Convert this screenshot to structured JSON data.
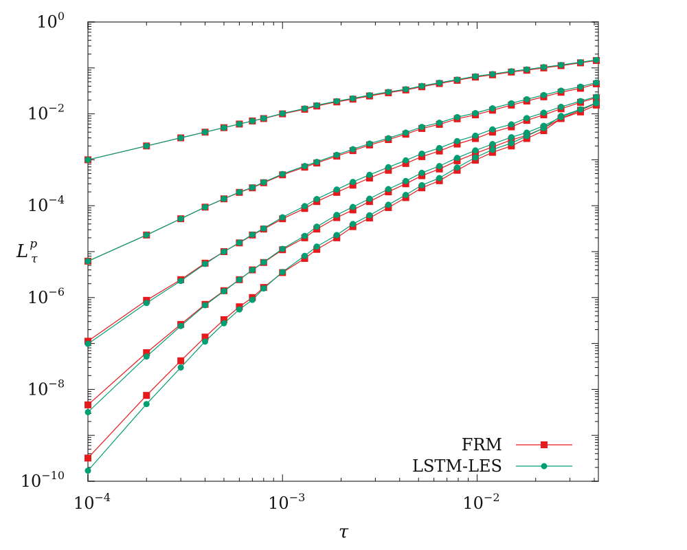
{
  "chart_data": {
    "type": "line",
    "xlabel": "τ",
    "ylabel": {
      "base": "L",
      "sup": "p",
      "sub": "τ"
    },
    "xscale": "log",
    "yscale": "log",
    "xlim": [
      0.0001,
      0.042
    ],
    "ylim": [
      1e-10,
      1
    ],
    "grid": false,
    "legend_position": "bottom-right",
    "x_ticks": [
      {
        "value": 0.0001,
        "base": "10",
        "exp": "−4"
      },
      {
        "value": 0.001,
        "base": "10",
        "exp": "−3"
      },
      {
        "value": 0.01,
        "base": "10",
        "exp": "−2"
      }
    ],
    "y_ticks": [
      {
        "value": 1,
        "base": "10",
        "exp": "0"
      },
      {
        "value": 0.01,
        "base": "10",
        "exp": "−2"
      },
      {
        "value": 0.0001,
        "base": "10",
        "exp": "−4"
      },
      {
        "value": 1e-06,
        "base": "10",
        "exp": "−6"
      },
      {
        "value": 1e-08,
        "base": "10",
        "exp": "−8"
      },
      {
        "value": 1e-10,
        "base": "10",
        "exp": "−10"
      }
    ],
    "x": [
      0.0001,
      0.0002,
      0.0003,
      0.0004,
      0.0005,
      0.0006,
      0.0007,
      0.0008,
      0.001,
      0.0013,
      0.0015,
      0.0019,
      0.0023,
      0.0028,
      0.0035,
      0.0043,
      0.0052,
      0.0064,
      0.0079,
      0.0098,
      0.012,
      0.015,
      0.018,
      0.022,
      0.027,
      0.034,
      0.041
    ],
    "series": [
      {
        "name": "FRM",
        "color": "#e41a1c",
        "marker": "square",
        "curves": [
          [
            0.001,
            0.002,
            0.003,
            0.004,
            0.005,
            0.006,
            0.007,
            0.0079,
            0.01,
            0.0126,
            0.0148,
            0.0182,
            0.0209,
            0.0245,
            0.0288,
            0.0331,
            0.0389,
            0.0457,
            0.0537,
            0.0631,
            0.0708,
            0.0813,
            0.0891,
            0.1,
            0.112,
            0.129,
            0.145
          ],
          [
            6.2e-06,
            2.3e-05,
            5.2e-05,
            9.3e-05,
            0.000141,
            0.000195,
            0.000245,
            0.000316,
            0.00047,
            0.00069,
            0.00085,
            0.0012,
            0.00158,
            0.0021,
            0.00275,
            0.0036,
            0.0048,
            0.0059,
            0.0078,
            0.0095,
            0.012,
            0.0155,
            0.019,
            0.0235,
            0.0295,
            0.036,
            0.045
          ],
          [
            1.12e-07,
            8.7e-07,
            2.45e-06,
            5.6e-06,
            1e-05,
            1.55e-05,
            2.3e-05,
            3.1e-05,
            5.2e-05,
            8.7e-05,
            0.000123,
            0.000195,
            0.00028,
            0.0004,
            0.00059,
            0.00083,
            0.00117,
            0.00155,
            0.0022,
            0.0029,
            0.004,
            0.0052,
            0.0072,
            0.0095,
            0.0129,
            0.0178,
            0.0224
          ],
          [
            4.6e-09,
            6.3e-08,
            2.6e-07,
            7.1e-07,
            1.41e-06,
            2.45e-06,
            4e-06,
            5.8e-06,
            1.1e-05,
            2e-05,
            3.1e-05,
            5.5e-05,
            8.1e-05,
            0.000123,
            0.0002,
            0.0003,
            0.00045,
            0.00063,
            0.00095,
            0.00138,
            0.0019,
            0.0027,
            0.0034,
            0.0049,
            0.0079,
            0.012,
            0.017
          ],
          [
            3.2e-10,
            7.4e-09,
            4.2e-08,
            1.38e-07,
            3.3e-07,
            6.3e-07,
            1e-06,
            1.66e-06,
            3.5e-06,
            7.1e-06,
            1.12e-05,
            2e-05,
            3.5e-05,
            5.4e-05,
            9.1e-05,
            0.00015,
            0.000245,
            0.00035,
            0.00059,
            0.00098,
            0.00145,
            0.002,
            0.0029,
            0.0043,
            0.0079,
            0.011,
            0.0155
          ]
        ]
      },
      {
        "name": "LSTM-LES",
        "color": "#009e73",
        "marker": "circle",
        "curves": [
          [
            0.001,
            0.002,
            0.003,
            0.004,
            0.005,
            0.006,
            0.007,
            0.008,
            0.0102,
            0.0131,
            0.0154,
            0.0189,
            0.0217,
            0.0255,
            0.03,
            0.0344,
            0.0405,
            0.0475,
            0.0558,
            0.0656,
            0.0736,
            0.0846,
            0.0927,
            0.104,
            0.116,
            0.133,
            0.149
          ],
          [
            6.2e-06,
            2.3e-05,
            5.2e-05,
            9.3e-05,
            0.000142,
            0.000198,
            0.00025,
            0.000325,
            0.00049,
            0.00073,
            0.0009,
            0.00128,
            0.0017,
            0.00225,
            0.00295,
            0.0039,
            0.0052,
            0.0064,
            0.0085,
            0.0104,
            0.0132,
            0.017,
            0.0208,
            0.0257,
            0.032,
            0.039,
            0.048
          ],
          [
            9.8e-08,
            7.6e-07,
            2.3e-06,
            5.4e-06,
            1e-05,
            1.57e-05,
            2.35e-05,
            3.2e-05,
            5.6e-05,
            9.8e-05,
            0.00014,
            0.000225,
            0.00033,
            0.00047,
            0.00069,
            0.00097,
            0.00136,
            0.0018,
            0.00255,
            0.00335,
            0.0046,
            0.0059,
            0.0081,
            0.0106,
            0.0142,
            0.019,
            0.0235
          ],
          [
            3.2e-09,
            5.2e-08,
            2.4e-07,
            6.8e-07,
            1.38e-06,
            2.45e-06,
            4e-06,
            5.9e-06,
            1.15e-05,
            2.2e-05,
            3.5e-05,
            6.3e-05,
            9.4e-05,
            0.000142,
            0.00023,
            0.000345,
            0.00052,
            0.00073,
            0.0011,
            0.0016,
            0.0022,
            0.0031,
            0.0039,
            0.0055,
            0.0085,
            0.0125,
            0.0175
          ],
          [
            1.7e-10,
            4.8e-09,
            3e-08,
            1.1e-07,
            2.75e-07,
            5.5e-07,
            8.9e-07,
            1.58e-06,
            3.6e-06,
            8.1e-06,
            1.29e-05,
            2.3e-05,
            4e-05,
            6.2e-05,
            0.000105,
            0.000172,
            0.00028,
            0.0004,
            0.00068,
            0.00112,
            0.00166,
            0.0023,
            0.0033,
            0.0049,
            0.009,
            0.0125,
            0.017
          ]
        ]
      }
    ]
  }
}
